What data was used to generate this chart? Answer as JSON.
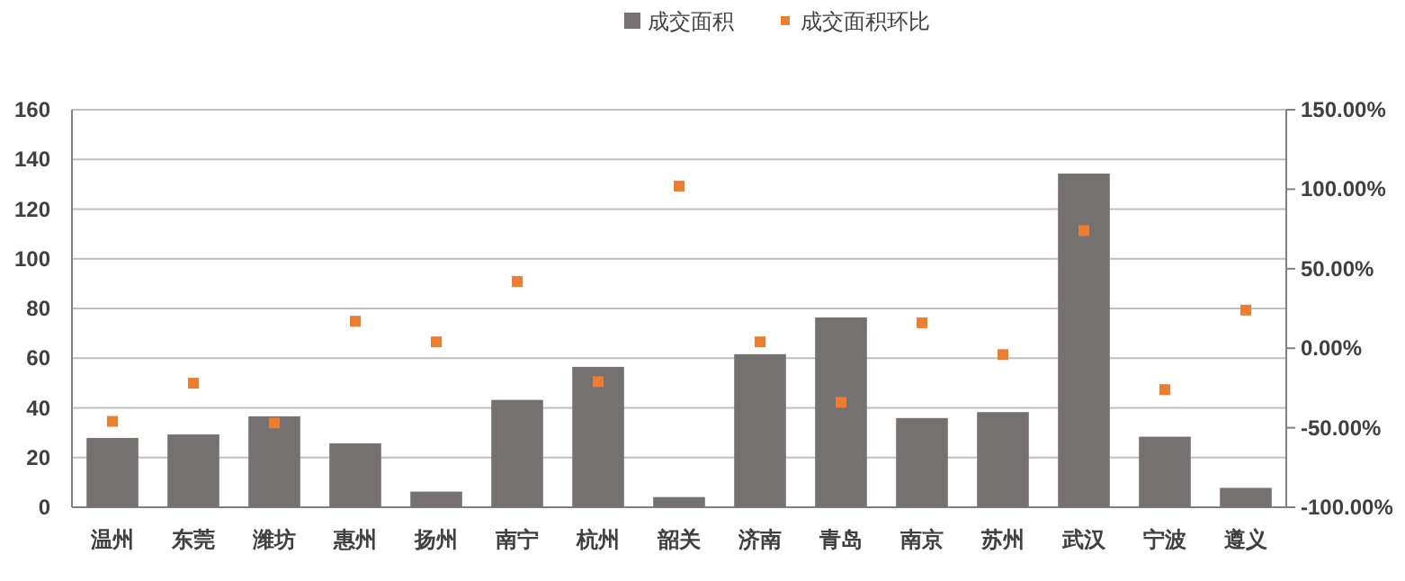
{
  "chart_data": {
    "type": "bar",
    "categories": [
      "温州",
      "东莞",
      "潍坊",
      "惠州",
      "扬州",
      "南宁",
      "杭州",
      "韶关",
      "济南",
      "青岛",
      "南京",
      "苏州",
      "武汉",
      "宁波",
      "遵义"
    ],
    "series": [
      {
        "name": "成交面积",
        "color": "#767171",
        "values": [
          27.9,
          29.3,
          36.6,
          25.7,
          6.3,
          43.2,
          56.5,
          4.1,
          61.6,
          76.4,
          35.9,
          38.3,
          134.3,
          28.4,
          7.8
        ]
      },
      {
        "name": "成交面积环比",
        "type": "scatter",
        "axis": "y2",
        "marker": "square",
        "color": "#ed7d31",
        "values": [
          -46,
          -22,
          -47,
          17,
          4,
          42,
          -21,
          102,
          4,
          -34,
          16,
          -4,
          74,
          -26,
          24
        ]
      }
    ],
    "ylim": [
      0,
      160
    ],
    "yticks": [
      0,
      20,
      40,
      60,
      80,
      100,
      120,
      140,
      160
    ],
    "y2lim": [
      -100,
      150
    ],
    "y2ticks": [
      {
        "value": -100,
        "label": "-100.00%"
      },
      {
        "value": -50,
        "label": "-50.00%"
      },
      {
        "value": 0,
        "label": "0.00%"
      },
      {
        "value": 50,
        "label": "50.00%"
      },
      {
        "value": 100,
        "label": "100.00%"
      },
      {
        "value": 150,
        "label": "150.00%"
      }
    ],
    "grid": "y",
    "legend": "top"
  }
}
